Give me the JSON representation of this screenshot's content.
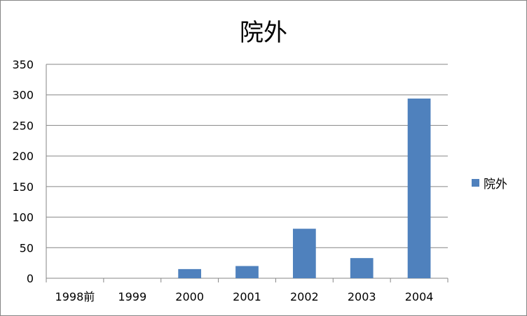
{
  "chart_data": {
    "type": "bar",
    "title": "院外",
    "categories": [
      "1998前",
      "1999",
      "2000",
      "2001",
      "2002",
      "2003",
      "2004"
    ],
    "series": [
      {
        "name": "院外",
        "values": [
          0,
          0,
          15,
          20,
          81,
          33,
          294
        ],
        "color": "#4f81bd"
      }
    ],
    "ylim": [
      0,
      350
    ],
    "yticks": [
      0,
      50,
      100,
      150,
      200,
      250,
      300,
      350
    ],
    "grid": true,
    "legend": "right"
  }
}
